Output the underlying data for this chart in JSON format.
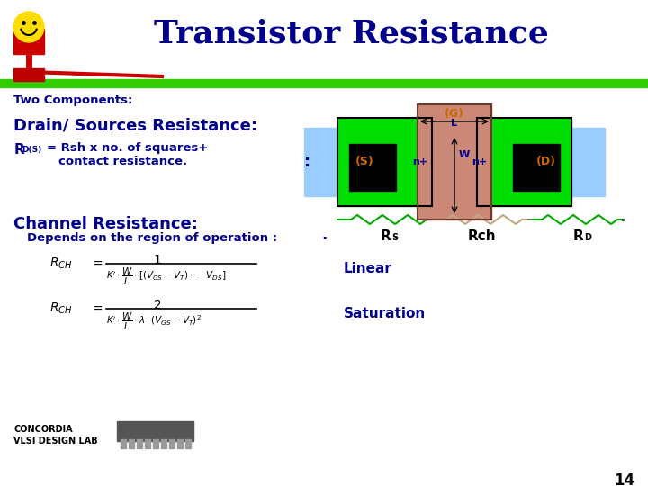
{
  "title": "Transistor Resistance",
  "title_color": "#00008B",
  "title_fontsize": 26,
  "bg_color": "#FFFFFF",
  "header_bar_color": "#33CC00",
  "text_color_blue": "#00008B",
  "text_color_orange": "#CC6600",
  "section1_title": "Two Components:",
  "section2_title": "Drain/ Sources Resistance:",
  "section4_title": "Channel Resistance:",
  "section5_text": "Depends on the region of operation :",
  "linear_label": "Linear",
  "saturation_label": "Saturation",
  "rs_label": "R",
  "rs_sub": "S",
  "rch_label": "Rch",
  "rd_label": "R",
  "rd_sub": "D",
  "g_label": "(G)",
  "s_label": "(S)",
  "d_label": "(D)",
  "l_label": "L",
  "w_label": "W",
  "nplus_label": "n+",
  "page_number": "14",
  "concordia_text": "CONCORDIA\nVLSI DESIGN LAB",
  "colors": {
    "light_blue": "#99CCFF",
    "green": "#00DD00",
    "salmon": "#CC8877",
    "black": "#000000",
    "dark_red": "#AA0000",
    "green_line": "#00AA00",
    "tan_line": "#C8A882"
  }
}
